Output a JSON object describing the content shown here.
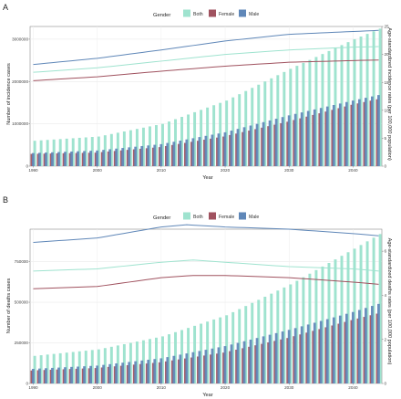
{
  "colors": {
    "both": "#9fe3cf",
    "female": "#a0525f",
    "male": "#5f87b8"
  },
  "legend": {
    "title": "Gender",
    "items": [
      "Both",
      "Female",
      "Male"
    ]
  },
  "chart_data": [
    {
      "panel": "A",
      "type": "bar+line",
      "xlabel": "Year",
      "ylabel_left": "Number of incidence cases",
      "ylabel_right": "Age-standardized incidence rates (per 100,000 population)",
      "x_start": 1990,
      "x_end": 2044,
      "x_ticks": [
        1990,
        2000,
        2010,
        2020,
        2030,
        2040
      ],
      "ylim_left": [
        0,
        3300000
      ],
      "y_ticks_left": [
        0,
        1000000,
        2000000,
        3000000
      ],
      "y_tick_labels_left": [
        "0",
        "1000000",
        "2000000",
        "3000000"
      ],
      "ylim_right": [
        0,
        25
      ],
      "y_ticks_right": [
        0,
        5,
        10,
        15,
        20,
        25
      ],
      "series_bars": [
        {
          "name": "Both",
          "anchors": [
            [
              1990,
              600000
            ],
            [
              2000,
              700000
            ],
            [
              2010,
              1000000
            ],
            [
              2020,
              1550000
            ],
            [
              2030,
              2300000
            ],
            [
              2040,
              3000000
            ],
            [
              2044,
              3250000
            ]
          ]
        },
        {
          "name": "Female",
          "anchors": [
            [
              1990,
              290000
            ],
            [
              2000,
              320000
            ],
            [
              2010,
              450000
            ],
            [
              2020,
              700000
            ],
            [
              2030,
              1050000
            ],
            [
              2040,
              1450000
            ],
            [
              2044,
              1580000
            ]
          ]
        },
        {
          "name": "Male",
          "anchors": [
            [
              1990,
              310000
            ],
            [
              2000,
              370000
            ],
            [
              2010,
              520000
            ],
            [
              2020,
              800000
            ],
            [
              2030,
              1200000
            ],
            [
              2040,
              1550000
            ],
            [
              2044,
              1680000
            ]
          ]
        }
      ],
      "series_rates": [
        {
          "name": "Both",
          "anchors": [
            [
              1990,
              16.8
            ],
            [
              2000,
              17.6
            ],
            [
              2010,
              18.8
            ],
            [
              2020,
              20.0
            ],
            [
              2030,
              20.8
            ],
            [
              2040,
              21.3
            ],
            [
              2044,
              21.4
            ]
          ]
        },
        {
          "name": "Female",
          "anchors": [
            [
              1990,
              15.3
            ],
            [
              2000,
              16.0
            ],
            [
              2010,
              17.0
            ],
            [
              2020,
              17.9
            ],
            [
              2030,
              18.6
            ],
            [
              2040,
              18.9
            ],
            [
              2044,
              19.0
            ]
          ]
        },
        {
          "name": "Male",
          "anchors": [
            [
              1990,
              18.2
            ],
            [
              2000,
              19.3
            ],
            [
              2010,
              20.8
            ],
            [
              2020,
              22.4
            ],
            [
              2030,
              23.6
            ],
            [
              2040,
              24.1
            ],
            [
              2044,
              24.3
            ]
          ]
        }
      ]
    },
    {
      "panel": "B",
      "type": "bar+line",
      "xlabel": "Year",
      "ylabel_left": "Number of deaths cases",
      "ylabel_right": "Age-standardized deaths rates (per 100,000 population)",
      "x_start": 1990,
      "x_end": 2044,
      "x_ticks": [
        1990,
        2000,
        2010,
        2020,
        2030,
        2040
      ],
      "ylim_left": [
        0,
        950000
      ],
      "y_ticks_left": [
        0,
        250000,
        500000,
        750000
      ],
      "y_tick_labels_left": [
        "0",
        "250000",
        "500000",
        "750000"
      ],
      "ylim_right": [
        0,
        7
      ],
      "y_ticks_right": [
        0,
        2,
        4,
        6
      ],
      "series_bars": [
        {
          "name": "Both",
          "anchors": [
            [
              1990,
              170000
            ],
            [
              2000,
              210000
            ],
            [
              2010,
              290000
            ],
            [
              2020,
              420000
            ],
            [
              2030,
              610000
            ],
            [
              2040,
              830000
            ],
            [
              2044,
              920000
            ]
          ]
        },
        {
          "name": "Female",
          "anchors": [
            [
              1990,
              80000
            ],
            [
              2000,
              95000
            ],
            [
              2010,
              130000
            ],
            [
              2020,
              190000
            ],
            [
              2030,
              280000
            ],
            [
              2040,
              390000
            ],
            [
              2044,
              430000
            ]
          ]
        },
        {
          "name": "Male",
          "anchors": [
            [
              1990,
              90000
            ],
            [
              2000,
              110000
            ],
            [
              2010,
              155000
            ],
            [
              2020,
              230000
            ],
            [
              2030,
              330000
            ],
            [
              2040,
              440000
            ],
            [
              2044,
              490000
            ]
          ]
        }
      ],
      "series_rates": [
        {
          "name": "Both",
          "anchors": [
            [
              1990,
              5.1
            ],
            [
              2000,
              5.2
            ],
            [
              2010,
              5.5
            ],
            [
              2015,
              5.6
            ],
            [
              2020,
              5.5
            ],
            [
              2030,
              5.3
            ],
            [
              2040,
              5.2
            ],
            [
              2044,
              5.1
            ]
          ]
        },
        {
          "name": "Female",
          "anchors": [
            [
              1990,
              4.3
            ],
            [
              2000,
              4.4
            ],
            [
              2010,
              4.8
            ],
            [
              2015,
              4.9
            ],
            [
              2020,
              4.9
            ],
            [
              2030,
              4.8
            ],
            [
              2040,
              4.6
            ],
            [
              2044,
              4.5
            ]
          ]
        },
        {
          "name": "Male",
          "anchors": [
            [
              1990,
              6.4
            ],
            [
              2000,
              6.6
            ],
            [
              2010,
              7.1
            ],
            [
              2014,
              7.2
            ],
            [
              2020,
              7.1
            ],
            [
              2030,
              7.0
            ],
            [
              2040,
              6.8
            ],
            [
              2044,
              6.7
            ]
          ]
        }
      ]
    }
  ]
}
